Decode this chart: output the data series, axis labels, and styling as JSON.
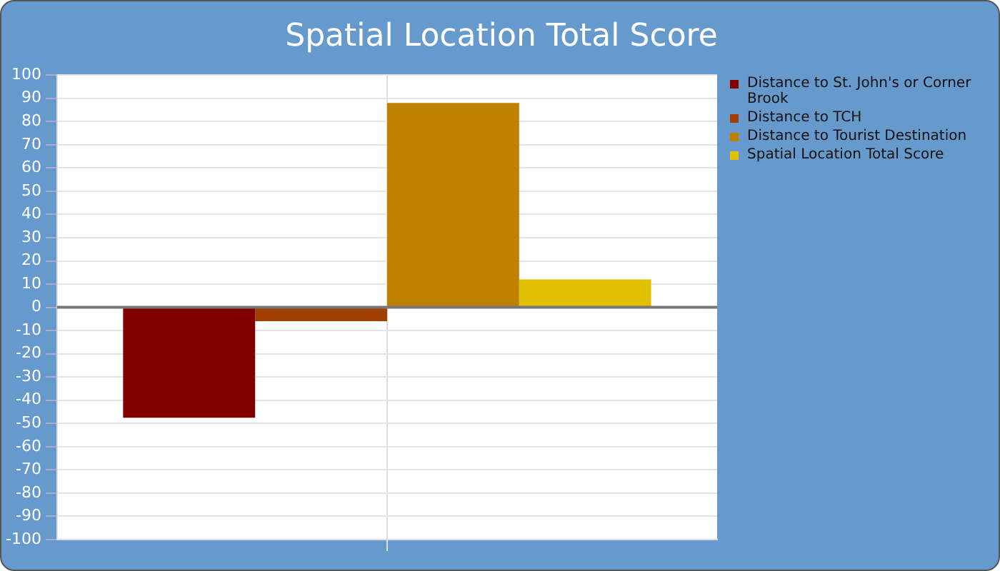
{
  "chart_data": {
    "type": "bar",
    "title": "Spatial Location Total Score",
    "categories": [
      null
    ],
    "series": [
      {
        "name": "Distance to St. John's or Corner Brook",
        "color": "#800000",
        "values": [
          -47.5
        ]
      },
      {
        "name": "Distance to TCH",
        "color": "#a04000",
        "values": [
          -6
        ]
      },
      {
        "name": "Distance to Tourist Destination",
        "color": "#c08000",
        "values": [
          88
        ]
      },
      {
        "name": "Spatial Location Total Score",
        "color": "#e0c000",
        "values": [
          12
        ]
      }
    ],
    "ylim": [
      -100,
      100
    ],
    "yticks": [
      -100,
      -90,
      -80,
      -70,
      -60,
      -50,
      -40,
      -30,
      -20,
      -10,
      0,
      10,
      20,
      30,
      40,
      50,
      60,
      70,
      80,
      90,
      100
    ],
    "grid": true,
    "legend": "right"
  }
}
